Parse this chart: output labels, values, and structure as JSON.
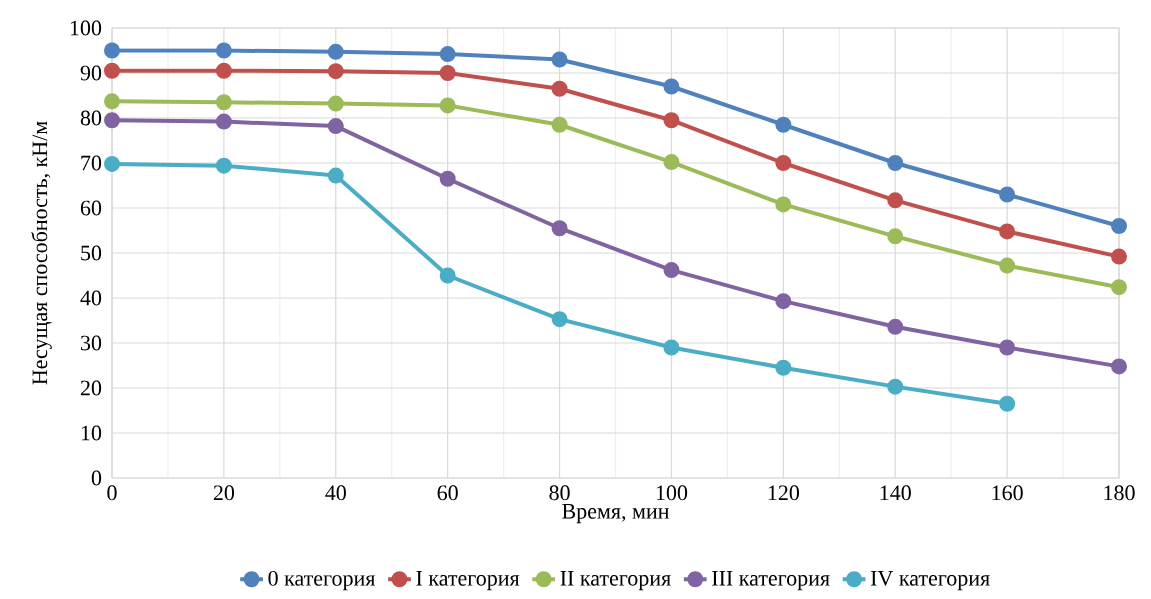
{
  "chart_data": {
    "type": "line",
    "xlabel": "Время, мин",
    "ylabel": "Несущая способность, кН/м",
    "x": [
      0,
      20,
      40,
      60,
      80,
      100,
      120,
      140,
      160,
      180
    ],
    "series": [
      {
        "name": "0 категория",
        "color": "#4f81bd",
        "values": [
          95,
          95,
          94.7,
          94.2,
          93,
          87,
          78.5,
          70,
          63,
          56
        ]
      },
      {
        "name": "I категория",
        "color": "#c0504d",
        "values": [
          90.5,
          90.5,
          90.4,
          90,
          86.5,
          79.5,
          70,
          61.7,
          54.8,
          49.2
        ]
      },
      {
        "name": "II категория",
        "color": "#9bbb59",
        "values": [
          83.7,
          83.5,
          83.2,
          82.8,
          78.5,
          70.2,
          60.8,
          53.7,
          47.2,
          42.4
        ]
      },
      {
        "name": "III категория",
        "color": "#8064a2",
        "values": [
          79.5,
          79.2,
          78.2,
          66.5,
          55.5,
          46.2,
          39.3,
          33.6,
          29,
          24.8
        ]
      },
      {
        "name": "IV категория",
        "color": "#4bacc6",
        "values": [
          69.8,
          69.4,
          67.2,
          45,
          35.3,
          29,
          24.5,
          20.3,
          16.5,
          null
        ]
      }
    ],
    "xlim": [
      0,
      180
    ],
    "ylim": [
      0,
      100
    ],
    "xticks": [
      0,
      20,
      40,
      60,
      80,
      100,
      120,
      140,
      160,
      180
    ],
    "yticks": [
      0,
      10,
      20,
      30,
      40,
      50,
      60,
      70,
      80,
      90,
      100
    ],
    "grid": true,
    "legend": "bottom",
    "marker": "circle",
    "line_style": "solid"
  }
}
